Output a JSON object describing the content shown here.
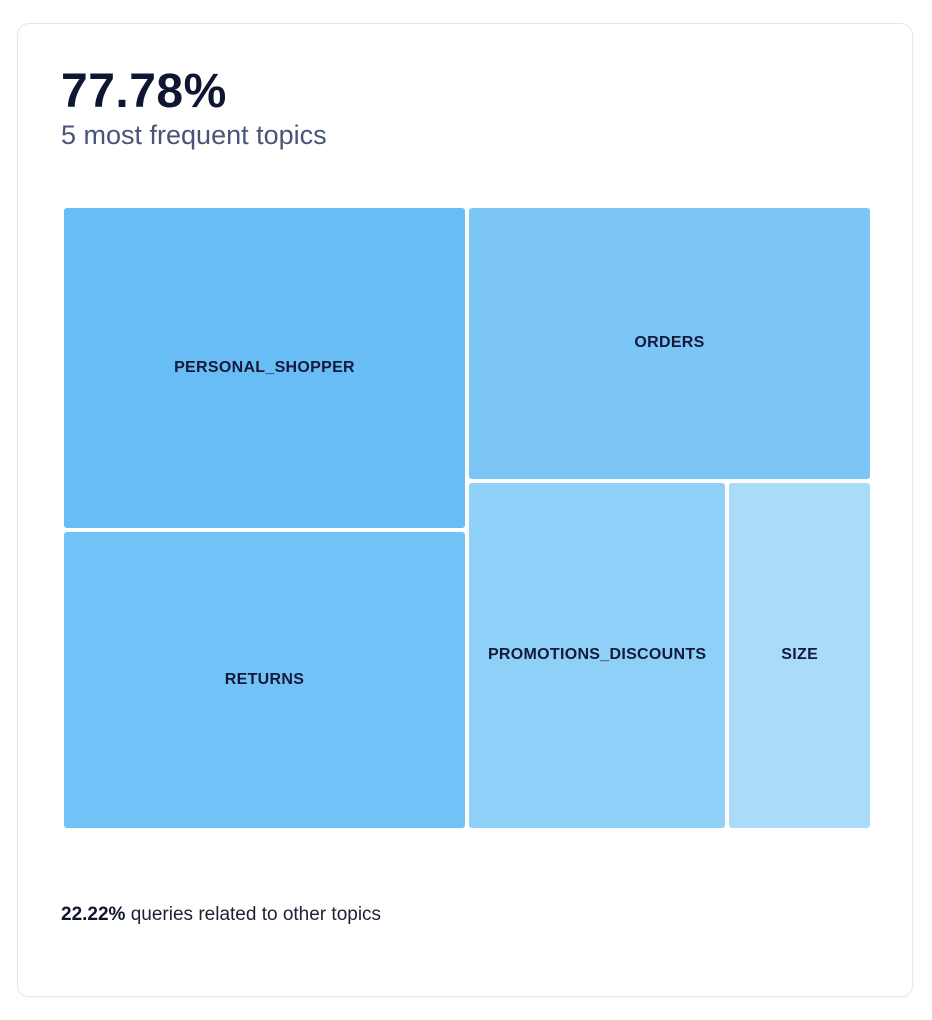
{
  "summary": {
    "headline_value": "77.78%",
    "subtitle": "5 most frequent topics"
  },
  "chart_data": {
    "type": "treemap",
    "title": "",
    "items": [
      {
        "label": "PERSONAL_SHOPPER",
        "value": 0.26,
        "color": "#69bdf5"
      },
      {
        "label": "RETURNS",
        "value": 0.24,
        "color": "#72c2f7"
      },
      {
        "label": "ORDERS",
        "value": 0.22,
        "color": "#7bc6f6"
      },
      {
        "label": "PROMOTIONS_DISCOUNTS",
        "value": 0.18,
        "color": "#8ed0f8"
      },
      {
        "label": "SIZE",
        "value": 0.1,
        "color": "#aadcf9"
      }
    ]
  },
  "footer": {
    "other_pct": "22.22%",
    "other_text": " queries related to other topics"
  }
}
